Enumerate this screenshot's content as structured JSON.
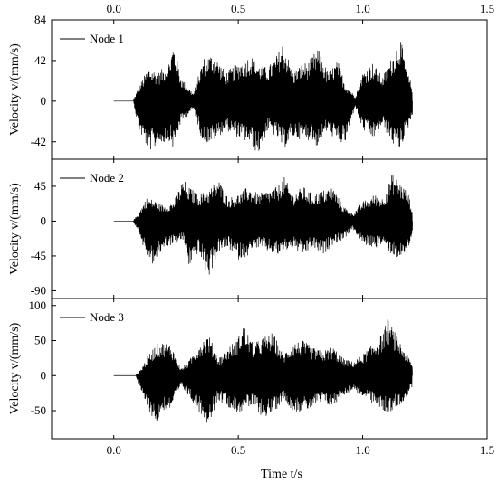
{
  "chart_data": {
    "type": "line",
    "xlabel": "Time t/s",
    "shared_ylabel": "Velocity v/(mm/s)",
    "xlim": [
      -0.25,
      1.5
    ],
    "xticks": [
      "0.0",
      "0.5",
      "1.0",
      "1.5"
    ],
    "xtick_values": [
      0.0,
      0.5,
      1.0,
      1.5
    ],
    "grid": false,
    "legend_placement": "top-left",
    "signal_window": [
      0.0,
      1.2
    ],
    "panels": [
      {
        "series_name": "Node 1",
        "ylim": [
          -60,
          84
        ],
        "yticks": [
          "84",
          "42",
          "0",
          "-42"
        ],
        "ytick_values": [
          84,
          42,
          0,
          -42
        ],
        "onset_time": 0.08,
        "end_time": 1.2,
        "envelope": {
          "t": [
            0.08,
            0.1,
            0.14,
            0.18,
            0.22,
            0.24,
            0.27,
            0.32,
            0.36,
            0.4,
            0.45,
            0.5,
            0.55,
            0.58,
            0.62,
            0.66,
            0.68,
            0.72,
            0.76,
            0.78,
            0.82,
            0.86,
            0.9,
            0.93,
            0.97,
            1.0,
            1.04,
            1.08,
            1.12,
            1.15,
            1.18,
            1.2
          ],
          "upper": [
            2,
            15,
            35,
            30,
            40,
            60,
            25,
            8,
            45,
            50,
            30,
            40,
            48,
            38,
            35,
            50,
            62,
            30,
            40,
            40,
            55,
            30,
            42,
            18,
            5,
            30,
            40,
            25,
            48,
            68,
            30,
            15
          ],
          "lower": [
            -2,
            -30,
            -52,
            -48,
            -40,
            -50,
            -22,
            -8,
            -45,
            -42,
            -30,
            -38,
            -45,
            -56,
            -30,
            -40,
            -50,
            -38,
            -40,
            -40,
            -48,
            -30,
            -45,
            -44,
            -5,
            -30,
            -40,
            -25,
            -45,
            -50,
            -30,
            -15
          ]
        }
      },
      {
        "series_name": "Node 2",
        "ylim": [
          -100,
          80
        ],
        "yticks": [
          "45",
          "0",
          "-45",
          "-90"
        ],
        "ytick_values": [
          45,
          0,
          -45,
          -90
        ],
        "onset_time": 0.08,
        "end_time": 1.2,
        "envelope": {
          "t": [
            0.08,
            0.1,
            0.13,
            0.16,
            0.2,
            0.24,
            0.28,
            0.3,
            0.34,
            0.38,
            0.42,
            0.46,
            0.5,
            0.54,
            0.58,
            0.62,
            0.66,
            0.68,
            0.72,
            0.76,
            0.8,
            0.84,
            0.88,
            0.92,
            0.96,
            1.0,
            1.05,
            1.08,
            1.12,
            1.15,
            1.18,
            1.2
          ],
          "upper": [
            2,
            10,
            30,
            28,
            20,
            25,
            55,
            45,
            35,
            40,
            55,
            30,
            35,
            45,
            35,
            40,
            45,
            60,
            35,
            45,
            35,
            40,
            45,
            20,
            10,
            25,
            35,
            30,
            62,
            50,
            40,
            15
          ],
          "lower": [
            -2,
            -15,
            -45,
            -58,
            -35,
            -30,
            -25,
            -60,
            -40,
            -75,
            -40,
            -35,
            -50,
            -45,
            -35,
            -40,
            -45,
            -40,
            -35,
            -45,
            -35,
            -45,
            -30,
            -25,
            -10,
            -30,
            -35,
            -30,
            -45,
            -50,
            -40,
            -15
          ]
        }
      },
      {
        "series_name": "Node 3",
        "ylim": [
          -90,
          110
        ],
        "yticks": [
          "100",
          "50",
          "0",
          "-50"
        ],
        "ytick_values": [
          100,
          50,
          0,
          -50
        ],
        "onset_time": 0.09,
        "end_time": 1.2,
        "envelope": {
          "t": [
            0.09,
            0.11,
            0.14,
            0.17,
            0.2,
            0.23,
            0.27,
            0.3,
            0.34,
            0.38,
            0.42,
            0.46,
            0.5,
            0.52,
            0.56,
            0.6,
            0.64,
            0.68,
            0.72,
            0.76,
            0.8,
            0.84,
            0.88,
            0.92,
            0.96,
            1.0,
            1.04,
            1.08,
            1.1,
            1.14,
            1.18,
            1.2
          ],
          "upper": [
            2,
            10,
            30,
            45,
            48,
            45,
            10,
            20,
            45,
            60,
            25,
            40,
            55,
            75,
            45,
            55,
            62,
            30,
            48,
            50,
            40,
            35,
            42,
            25,
            20,
            30,
            45,
            60,
            82,
            55,
            30,
            15
          ],
          "lower": [
            -2,
            -25,
            -50,
            -70,
            -50,
            -48,
            -15,
            -30,
            -50,
            -70,
            -35,
            -45,
            -55,
            -50,
            -45,
            -60,
            -55,
            -35,
            -50,
            -55,
            -45,
            -40,
            -45,
            -30,
            -20,
            -30,
            -40,
            -50,
            -55,
            -45,
            -30,
            -15
          ]
        }
      }
    ]
  }
}
